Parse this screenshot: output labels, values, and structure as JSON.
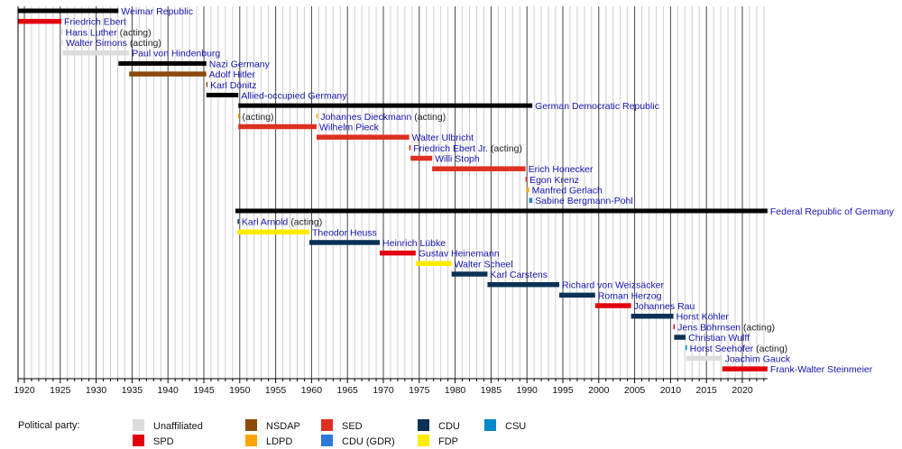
{
  "chart_data": {
    "type": "bar",
    "orientation": "horizontal-range timeline",
    "x_axis": {
      "range": [
        1919.1,
        2023.5
      ],
      "ticks": [
        1920,
        1925,
        1930,
        1935,
        1940,
        1945,
        1950,
        1955,
        1960,
        1965,
        1970,
        1975,
        1980,
        1985,
        1990,
        1995,
        2000,
        2005,
        2010,
        2015,
        2020
      ],
      "grid": "yearly minor, 5-year major"
    },
    "rows": [
      {
        "name": "Weimar Republic",
        "start": 1919.1,
        "end": 1933.1,
        "party": "state"
      },
      {
        "name": "Friedrich Ebert",
        "start": 1919.1,
        "end": 1925.15,
        "party": "SPD"
      },
      {
        "name": "Hans Luther",
        "suffix": "(acting)",
        "start": 1925.15,
        "end": 1925.22,
        "party": "Unaffiliated"
      },
      {
        "name": "Walter Simons",
        "suffix": "(acting)",
        "start": 1925.22,
        "end": 1925.35,
        "party": "Unaffiliated"
      },
      {
        "name": "Paul von Hindenburg",
        "start": 1925.35,
        "end": 1934.6,
        "party": "Unaffiliated"
      },
      {
        "name": "Nazi Germany",
        "start": 1933.1,
        "end": 1945.35,
        "party": "state"
      },
      {
        "name": "Adolf Hitler",
        "start": 1934.6,
        "end": 1945.33,
        "party": "NSDAP"
      },
      {
        "name": "Karl Dönitz",
        "start": 1945.33,
        "end": 1945.4,
        "party": "NSDAP"
      },
      {
        "name": "Allied-occupied Germany",
        "start": 1945.35,
        "end": 1949.8,
        "party": "state"
      },
      {
        "name": "German Democratic Republic",
        "start": 1949.8,
        "end": 1990.75,
        "party": "state"
      },
      {
        "name": "",
        "suffix": "(acting)",
        "start": 1949.78,
        "end": 1949.85,
        "party": "LDPD",
        "extra": {
          "name": "Johannes Dieckmann",
          "suffix": "(acting)",
          "start": 1960.68,
          "end": 1960.75
        }
      },
      {
        "name": "Wilhelm Pieck",
        "start": 1949.8,
        "end": 1960.7,
        "party": "SED"
      },
      {
        "name": "Walter Ulbricht",
        "start": 1960.7,
        "end": 1973.6,
        "party": "SED"
      },
      {
        "name": "Friedrich Ebert Jr.",
        "suffix": "(acting)",
        "start": 1973.6,
        "end": 1973.8,
        "party": "SED"
      },
      {
        "name": "Willi Stoph",
        "start": 1973.8,
        "end": 1976.8,
        "party": "SED"
      },
      {
        "name": "Erich Honecker",
        "start": 1976.8,
        "end": 1989.8,
        "party": "SED"
      },
      {
        "name": "Egon Krenz",
        "start": 1989.8,
        "end": 1989.95,
        "party": "SED"
      },
      {
        "name": "Manfred Gerlach",
        "start": 1989.95,
        "end": 1990.3,
        "party": "LDPD"
      },
      {
        "name": "Sabine Bergmann-Pohl",
        "start": 1990.3,
        "end": 1990.75,
        "party": "CDU (GDR)"
      },
      {
        "name": "Federal Republic of Germany",
        "start": 1949.4,
        "end": 2023.5,
        "party": "state"
      },
      {
        "name": "Karl Arnold",
        "suffix": "(acting)",
        "start": 1949.7,
        "end": 1949.8,
        "party": "CDU"
      },
      {
        "name": "Theodor Heuss",
        "start": 1949.7,
        "end": 1959.7,
        "party": "FDP"
      },
      {
        "name": "Heinrich Lübke",
        "start": 1959.7,
        "end": 1969.5,
        "party": "CDU"
      },
      {
        "name": "Gustav Heinemann",
        "start": 1969.5,
        "end": 1974.5,
        "party": "SPD"
      },
      {
        "name": "Walter Scheel",
        "start": 1974.5,
        "end": 1979.5,
        "party": "FDP"
      },
      {
        "name": "Karl Carstens",
        "start": 1979.5,
        "end": 1984.5,
        "party": "CDU"
      },
      {
        "name": "Richard von Weizsäcker",
        "start": 1984.5,
        "end": 1994.5,
        "party": "CDU"
      },
      {
        "name": "Roman Herzog",
        "start": 1994.5,
        "end": 1999.5,
        "party": "CDU"
      },
      {
        "name": "Johannes Rau",
        "start": 1999.5,
        "end": 2004.5,
        "party": "SPD"
      },
      {
        "name": "Horst Köhler",
        "start": 2004.5,
        "end": 2010.4,
        "party": "CDU"
      },
      {
        "name": "Jens Böhrnsen",
        "suffix": "(acting)",
        "start": 2010.4,
        "end": 2010.5,
        "party": "SPD"
      },
      {
        "name": "Christian Wulff",
        "start": 2010.5,
        "end": 2012.1,
        "party": "CDU"
      },
      {
        "name": "Horst Seehofer",
        "suffix": "(acting)",
        "start": 2012.1,
        "end": 2012.2,
        "party": "CSU"
      },
      {
        "name": "Joachim Gauck",
        "start": 2012.2,
        "end": 2017.2,
        "party": "Unaffiliated"
      },
      {
        "name": "Frank-Walter Steinmeier",
        "start": 2017.2,
        "end": 2023.5,
        "party": "SPD"
      }
    ],
    "legend": {
      "title": "Political party:",
      "placement": "bottom",
      "items": [
        {
          "label": "Unaffiliated",
          "color": "#dcdcdc"
        },
        {
          "label": "SPD",
          "color": "#e2000f"
        },
        {
          "label": "NSDAP",
          "color": "#8c4a0c"
        },
        {
          "label": "LDPD",
          "color": "#ffa500"
        },
        {
          "label": "SED",
          "color": "#de3020"
        },
        {
          "label": "CDU (GDR)",
          "color": "#2c7ad8"
        },
        {
          "label": "CDU",
          "color": "#0b3156"
        },
        {
          "label": "FDP",
          "color": "#ffeb00"
        },
        {
          "label": "CSU",
          "color": "#0089c8"
        }
      ]
    },
    "colors": {
      "state": "#000000",
      "name_text": "#1515b0",
      "suffix_text": "#222222"
    }
  }
}
